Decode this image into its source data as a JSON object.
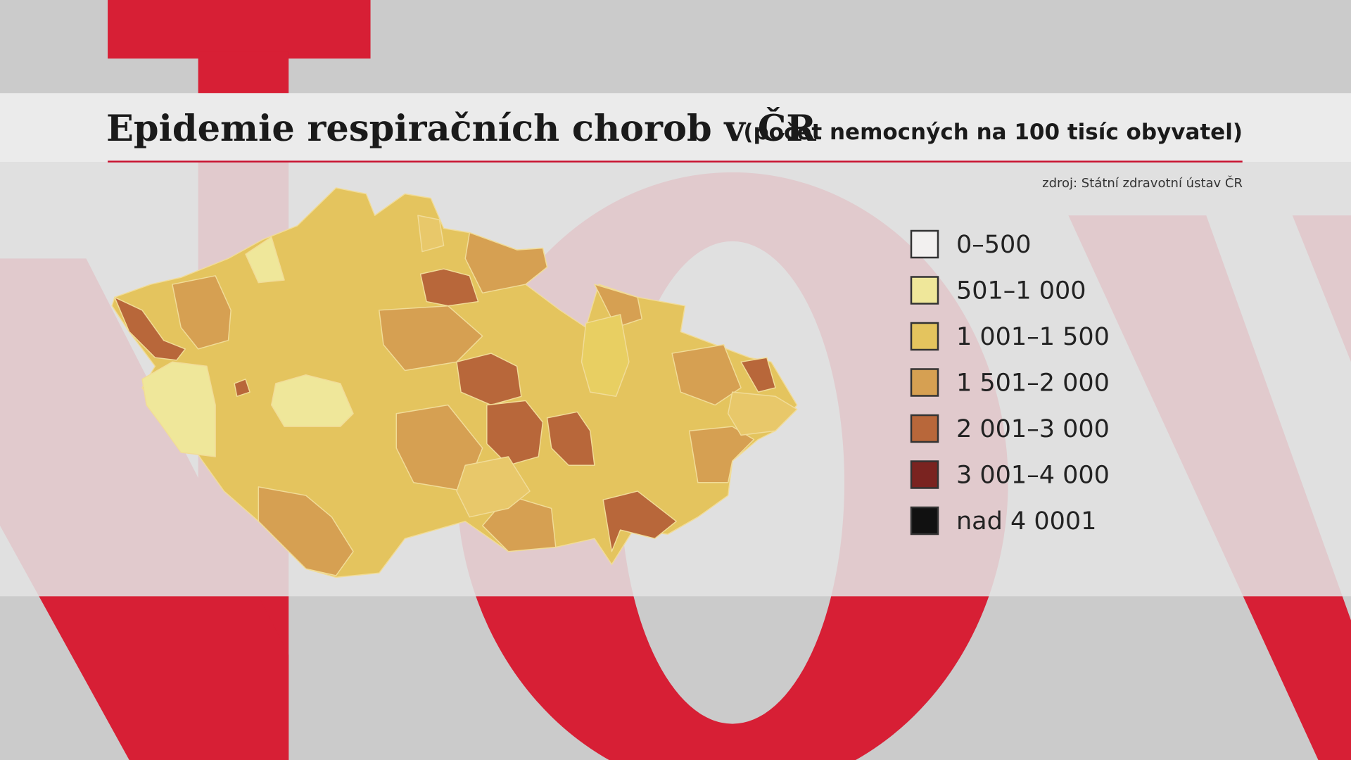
{
  "header": {
    "title": "Epidemie respiračních chorob v ČR",
    "subtitle": "(počet nemocných na 100 tisíc obyvatel)"
  },
  "source": "zdroj: Státní zdravotní ústav ČR",
  "legend": {
    "items": [
      {
        "label": "0–500",
        "color": "#f2f0ef"
      },
      {
        "label": "501–1 000",
        "color": "#efe79a"
      },
      {
        "label": "1 001–1 500",
        "color": "#e4c45e"
      },
      {
        "label": "1 501–2 000",
        "color": "#d6a052"
      },
      {
        "label": "2 001–3 000",
        "color": "#b8673a"
      },
      {
        "label": "3 001–4 000",
        "color": "#7a2320"
      },
      {
        "label": "nad 4 0001",
        "color": "#111111"
      }
    ]
  }
}
